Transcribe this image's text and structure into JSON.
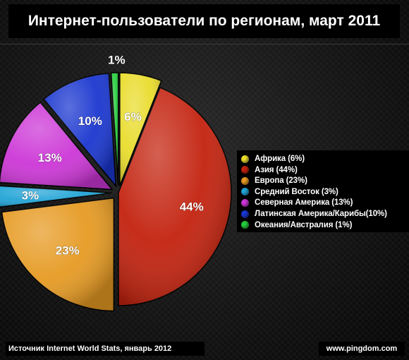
{
  "title": "Интернет-пользователи по регионам, март 2011",
  "source": "Источник Internet World Stats, январь 2012",
  "credit": "www.pingdom.com",
  "chart_data": {
    "type": "pie",
    "title": "Интернет-пользователи по регионам, март 2011",
    "legend_position": "right",
    "slices": [
      {
        "name": "Африка",
        "legend": "Африка (6%)",
        "value": 6,
        "label": "6%",
        "color": "#e9dc2c",
        "exploded": true
      },
      {
        "name": "Азия",
        "legend": "Азия (44%)",
        "value": 44,
        "label": "44%",
        "color": "#c3220e",
        "exploded": false
      },
      {
        "name": "Европа",
        "legend": "Европа (23%)",
        "value": 23,
        "label": "23%",
        "color": "#e69a22",
        "exploded": true
      },
      {
        "name": "Средний Восток",
        "legend": "Средний Восток (3%)",
        "value": 3,
        "label": "3%",
        "color": "#21a4d6",
        "exploded": true
      },
      {
        "name": "Северная Америка",
        "legend": "Северная Америка (13%)",
        "value": 13,
        "label": "13%",
        "color": "#cc36d6",
        "exploded": true
      },
      {
        "name": "Латинская Америка/Карибы",
        "legend": "Латинская Америка/Карибы(10%)",
        "value": 10,
        "label": "10%",
        "color": "#1a36cf",
        "exploded": true
      },
      {
        "name": "Океания/Австралия",
        "legend": "Океания/Австралия (1%)",
        "value": 1,
        "label": "1%",
        "color": "#24cc3b",
        "exploded": true
      }
    ]
  }
}
